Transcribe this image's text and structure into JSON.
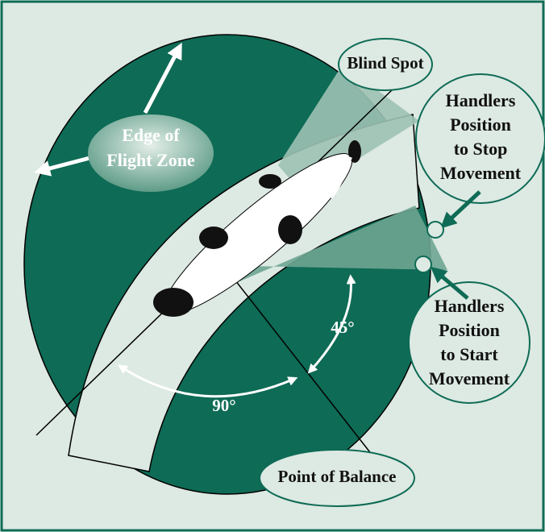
{
  "labels": {
    "blind_spot": "Blind Spot",
    "edge_of_flight_zone": [
      "Edge of",
      "Flight Zone"
    ],
    "handlers_stop": [
      "Handlers",
      "Position",
      "to Stop",
      "Movement"
    ],
    "handlers_start": [
      "Handlers",
      "Position",
      "to Start",
      "Movement"
    ],
    "angle_45": "45°",
    "angle_90": "90°",
    "point_of_balance": "Point of Balance"
  }
}
